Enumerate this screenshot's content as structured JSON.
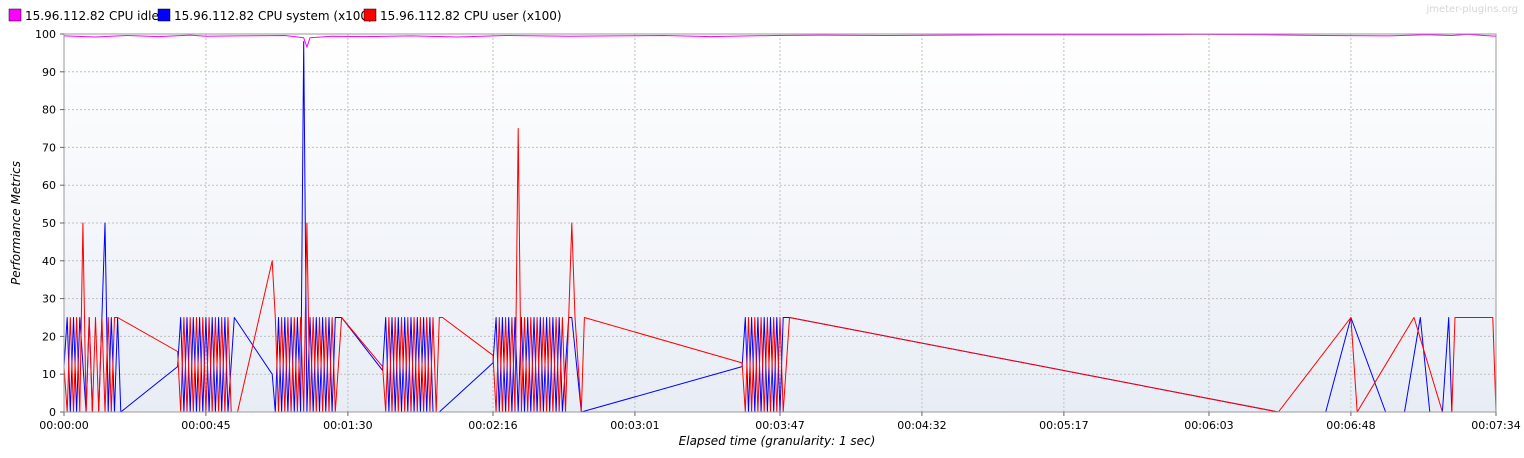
{
  "colors": {
    "idle": "#ff00ff",
    "system": "#0000ff",
    "user": "#ff0000",
    "grid": "#c0c0c0",
    "plot_bg_top": "#ffffff",
    "plot_bg_bottom": "#e8edf5",
    "frame": "#999999"
  },
  "watermark": "jmeter-plugins.org",
  "chart_data": {
    "type": "line",
    "xlabel": "Elapsed time (granularity: 1 sec)",
    "ylabel": "Performance Metrics",
    "xlim": [
      0,
      454
    ],
    "ylim": [
      0,
      100
    ],
    "grid": true,
    "legend_position": "top-left",
    "x_ticks": [
      {
        "t": 0,
        "label": "00:00:00"
      },
      {
        "t": 45,
        "label": "00:00:45"
      },
      {
        "t": 90,
        "label": "00:01:30"
      },
      {
        "t": 136,
        "label": "00:02:16"
      },
      {
        "t": 181,
        "label": "00:03:01"
      },
      {
        "t": 227,
        "label": "00:03:47"
      },
      {
        "t": 272,
        "label": "00:04:32"
      },
      {
        "t": 317,
        "label": "00:05:17"
      },
      {
        "t": 363,
        "label": "00:06:03"
      },
      {
        "t": 408,
        "label": "00:06:48"
      },
      {
        "t": 454,
        "label": "00:07:34"
      }
    ],
    "y_ticks": [
      0,
      10,
      20,
      30,
      40,
      50,
      60,
      70,
      80,
      90,
      100
    ],
    "series": [
      {
        "name": "15.96.112.82 CPU idle",
        "color": "#ff00ff",
        "points": [
          [
            0,
            99.5
          ],
          [
            10,
            99.2
          ],
          [
            20,
            99.6
          ],
          [
            30,
            99.3
          ],
          [
            40,
            99.7
          ],
          [
            45,
            99.4
          ],
          [
            55,
            99.5
          ],
          [
            70,
            99.6
          ],
          [
            76,
            99.0
          ],
          [
            77,
            96.5
          ],
          [
            78,
            99.0
          ],
          [
            85,
            99.4
          ],
          [
            95,
            99.3
          ],
          [
            110,
            99.5
          ],
          [
            125,
            99.2
          ],
          [
            140,
            99.6
          ],
          [
            160,
            99.4
          ],
          [
            175,
            99.5
          ],
          [
            190,
            99.6
          ],
          [
            205,
            99.3
          ],
          [
            225,
            99.6
          ],
          [
            240,
            99.7
          ],
          [
            260,
            99.6
          ],
          [
            280,
            99.7
          ],
          [
            300,
            99.8
          ],
          [
            320,
            99.8
          ],
          [
            340,
            99.8
          ],
          [
            360,
            99.9
          ],
          [
            380,
            99.8
          ],
          [
            400,
            99.6
          ],
          [
            420,
            99.5
          ],
          [
            432,
            99.8
          ],
          [
            440,
            99.6
          ],
          [
            445,
            99.9
          ],
          [
            454,
            99.4
          ]
        ]
      },
      {
        "name": "15.96.112.82 CPU system (x100)",
        "color": "#0000ff",
        "points": [
          [
            0,
            12
          ],
          [
            1,
            25
          ],
          [
            2,
            0
          ],
          [
            3,
            25
          ],
          [
            4,
            0
          ],
          [
            5,
            25
          ],
          [
            7,
            0
          ],
          [
            8,
            25
          ],
          [
            9,
            0
          ],
          [
            11,
            0
          ],
          [
            12,
            25
          ],
          [
            13,
            50
          ],
          [
            14,
            0
          ],
          [
            15,
            25
          ],
          [
            16,
            0
          ],
          [
            17,
            25
          ],
          [
            18,
            0
          ],
          [
            36,
            12
          ],
          [
            37,
            25
          ],
          [
            38,
            0
          ],
          [
            39,
            25
          ],
          [
            40,
            0
          ],
          [
            41,
            25
          ],
          [
            42,
            0
          ],
          [
            43,
            25
          ],
          [
            44,
            0
          ],
          [
            45,
            25
          ],
          [
            46,
            0
          ],
          [
            47,
            25
          ],
          [
            48,
            0
          ],
          [
            49,
            25
          ],
          [
            50,
            0
          ],
          [
            51,
            25
          ],
          [
            52,
            0
          ],
          [
            54,
            25
          ],
          [
            66,
            10
          ],
          [
            67,
            0
          ],
          [
            68,
            25
          ],
          [
            69,
            0
          ],
          [
            70,
            25
          ],
          [
            71,
            0
          ],
          [
            72,
            25
          ],
          [
            73,
            0
          ],
          [
            74,
            25
          ],
          [
            75,
            0
          ],
          [
            76,
            98
          ],
          [
            77,
            0
          ],
          [
            78,
            25
          ],
          [
            79,
            0
          ],
          [
            80,
            25
          ],
          [
            81,
            0
          ],
          [
            82,
            25
          ],
          [
            83,
            0
          ],
          [
            84,
            25
          ],
          [
            85,
            0
          ],
          [
            86,
            25
          ],
          [
            88,
            25
          ],
          [
            101,
            11
          ],
          [
            102,
            25
          ],
          [
            103,
            0
          ],
          [
            104,
            25
          ],
          [
            105,
            0
          ],
          [
            106,
            25
          ],
          [
            107,
            0
          ],
          [
            108,
            25
          ],
          [
            109,
            0
          ],
          [
            110,
            25
          ],
          [
            111,
            0
          ],
          [
            112,
            25
          ],
          [
            113,
            0
          ],
          [
            114,
            25
          ],
          [
            115,
            0
          ],
          [
            116,
            25
          ],
          [
            117,
            0
          ],
          [
            119,
            0
          ],
          [
            136,
            13
          ],
          [
            137,
            25
          ],
          [
            138,
            0
          ],
          [
            139,
            25
          ],
          [
            140,
            0
          ],
          [
            141,
            25
          ],
          [
            142,
            0
          ],
          [
            143,
            25
          ],
          [
            144,
            0
          ],
          [
            145,
            25
          ],
          [
            146,
            0
          ],
          [
            147,
            25
          ],
          [
            148,
            0
          ],
          [
            149,
            25
          ],
          [
            150,
            0
          ],
          [
            151,
            25
          ],
          [
            152,
            0
          ],
          [
            153,
            25
          ],
          [
            154,
            0
          ],
          [
            155,
            25
          ],
          [
            156,
            0
          ],
          [
            157,
            25
          ],
          [
            158,
            0
          ],
          [
            160,
            25
          ],
          [
            161,
            25
          ],
          [
            164,
            0
          ],
          [
            215,
            12
          ],
          [
            216,
            25
          ],
          [
            217,
            0
          ],
          [
            218,
            25
          ],
          [
            219,
            0
          ],
          [
            220,
            25
          ],
          [
            221,
            0
          ],
          [
            222,
            25
          ],
          [
            223,
            0
          ],
          [
            224,
            25
          ],
          [
            225,
            0
          ],
          [
            226,
            25
          ],
          [
            227,
            0
          ],
          [
            228,
            25
          ],
          [
            230,
            25
          ],
          [
            385,
            0
          ],
          [
            400,
            0
          ],
          [
            408,
            25
          ],
          [
            419,
            0
          ],
          [
            425,
            0
          ],
          [
            430,
            25
          ],
          [
            433,
            0
          ],
          [
            437,
            0
          ],
          [
            439,
            25
          ],
          [
            440,
            0
          ],
          [
            441,
            0
          ],
          [
            453,
            0
          ],
          [
            454,
            0
          ]
        ]
      },
      {
        "name": "15.96.112.82 CPU user (x100)",
        "color": "#ff0000",
        "points": [
          [
            0,
            12
          ],
          [
            1,
            0
          ],
          [
            2,
            25
          ],
          [
            3,
            0
          ],
          [
            4,
            25
          ],
          [
            5,
            0
          ],
          [
            6,
            50
          ],
          [
            7,
            0
          ],
          [
            8,
            25
          ],
          [
            9,
            0
          ],
          [
            10,
            25
          ],
          [
            11,
            0
          ],
          [
            12,
            25
          ],
          [
            13,
            0
          ],
          [
            14,
            25
          ],
          [
            15,
            0
          ],
          [
            16,
            25
          ],
          [
            17,
            25
          ],
          [
            36,
            16
          ],
          [
            37,
            0
          ],
          [
            38,
            25
          ],
          [
            39,
            0
          ],
          [
            40,
            25
          ],
          [
            41,
            0
          ],
          [
            42,
            25
          ],
          [
            43,
            0
          ],
          [
            44,
            25
          ],
          [
            45,
            0
          ],
          [
            46,
            25
          ],
          [
            47,
            0
          ],
          [
            48,
            25
          ],
          [
            49,
            0
          ],
          [
            50,
            25
          ],
          [
            51,
            0
          ],
          [
            52,
            25
          ],
          [
            53,
            0
          ],
          [
            55,
            0
          ],
          [
            66,
            40
          ],
          [
            67,
            25
          ],
          [
            68,
            0
          ],
          [
            69,
            25
          ],
          [
            70,
            0
          ],
          [
            71,
            25
          ],
          [
            72,
            0
          ],
          [
            73,
            25
          ],
          [
            74,
            0
          ],
          [
            75,
            25
          ],
          [
            76,
            0
          ],
          [
            77,
            50
          ],
          [
            78,
            0
          ],
          [
            79,
            25
          ],
          [
            80,
            0
          ],
          [
            81,
            25
          ],
          [
            82,
            0
          ],
          [
            83,
            25
          ],
          [
            84,
            0
          ],
          [
            85,
            25
          ],
          [
            86,
            0
          ],
          [
            88,
            25
          ],
          [
            101,
            12
          ],
          [
            102,
            0
          ],
          [
            103,
            25
          ],
          [
            104,
            0
          ],
          [
            105,
            25
          ],
          [
            106,
            0
          ],
          [
            107,
            25
          ],
          [
            108,
            0
          ],
          [
            109,
            25
          ],
          [
            110,
            0
          ],
          [
            111,
            25
          ],
          [
            112,
            0
          ],
          [
            113,
            25
          ],
          [
            114,
            0
          ],
          [
            115,
            25
          ],
          [
            116,
            0
          ],
          [
            117,
            25
          ],
          [
            118,
            0
          ],
          [
            119,
            25
          ],
          [
            120,
            25
          ],
          [
            136,
            15
          ],
          [
            137,
            0
          ],
          [
            138,
            25
          ],
          [
            139,
            0
          ],
          [
            140,
            25
          ],
          [
            141,
            0
          ],
          [
            142,
            25
          ],
          [
            143,
            0
          ],
          [
            144,
            75
          ],
          [
            145,
            0
          ],
          [
            146,
            25
          ],
          [
            147,
            0
          ],
          [
            148,
            25
          ],
          [
            149,
            0
          ],
          [
            150,
            25
          ],
          [
            151,
            0
          ],
          [
            152,
            25
          ],
          [
            153,
            0
          ],
          [
            154,
            25
          ],
          [
            155,
            0
          ],
          [
            156,
            25
          ],
          [
            157,
            0
          ],
          [
            158,
            25
          ],
          [
            159,
            0
          ],
          [
            160,
            25
          ],
          [
            161,
            50
          ],
          [
            162,
            25
          ],
          [
            164,
            0
          ],
          [
            165,
            25
          ],
          [
            215,
            13
          ],
          [
            216,
            0
          ],
          [
            217,
            25
          ],
          [
            218,
            0
          ],
          [
            219,
            25
          ],
          [
            220,
            0
          ],
          [
            221,
            25
          ],
          [
            222,
            0
          ],
          [
            223,
            25
          ],
          [
            224,
            0
          ],
          [
            225,
            25
          ],
          [
            226,
            0
          ],
          [
            227,
            25
          ],
          [
            228,
            0
          ],
          [
            230,
            25
          ],
          [
            385,
            0
          ],
          [
            408,
            25
          ],
          [
            410,
            0
          ],
          [
            428,
            25
          ],
          [
            437,
            0
          ],
          [
            440,
            0
          ],
          [
            441,
            25
          ],
          [
            445,
            25
          ],
          [
            453,
            25
          ],
          [
            454,
            0
          ]
        ]
      }
    ]
  }
}
